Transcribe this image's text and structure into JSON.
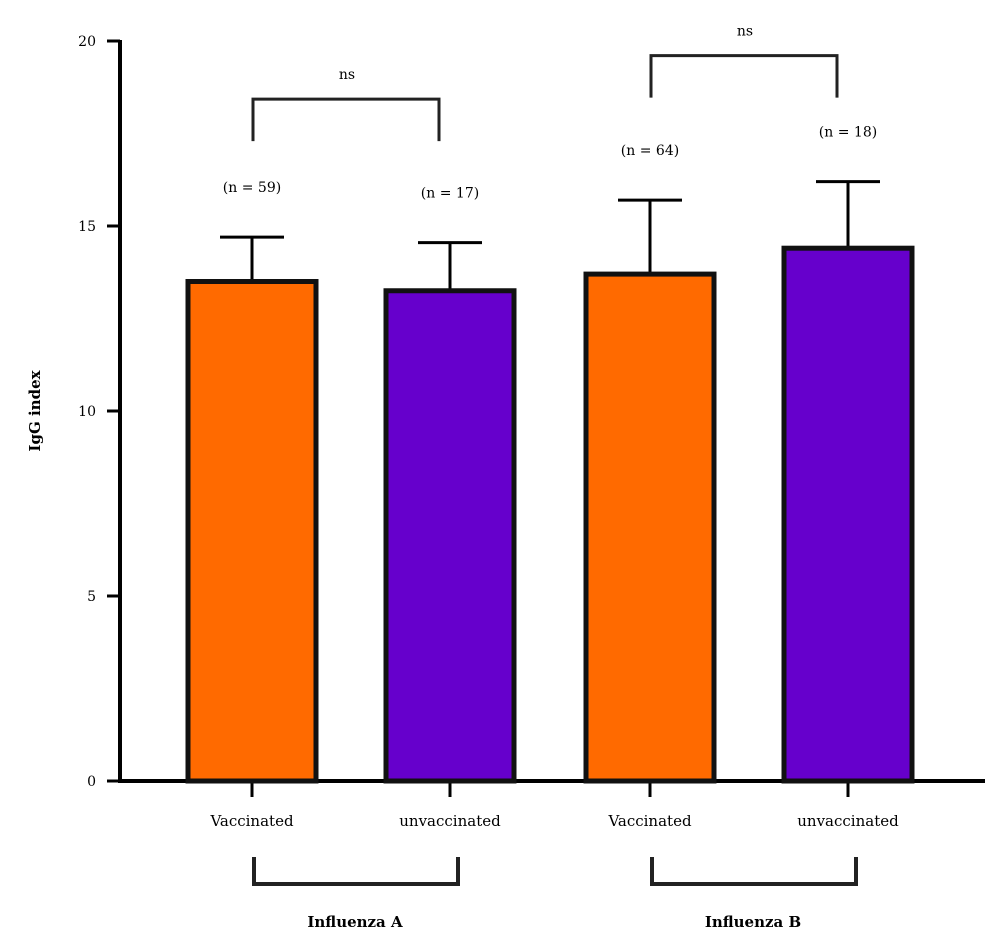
{
  "chart_data": {
    "type": "bar",
    "ylabel": "IgG index",
    "ylim": [
      0,
      20
    ],
    "yticks": [
      0,
      5,
      10,
      15,
      20
    ],
    "categories": [
      "Vaccinated",
      "unvaccinated",
      "Vaccinated",
      "unvaccinated"
    ],
    "groups": [
      {
        "label": "Influenza A",
        "bars": [
          0,
          1
        ],
        "significance": "ns"
      },
      {
        "label": "Influenza B",
        "bars": [
          2,
          3
        ],
        "significance": "ns"
      }
    ],
    "values": [
      13.5,
      13.25,
      13.7,
      14.4
    ],
    "error_upper": [
      14.7,
      14.55,
      15.7,
      16.2
    ],
    "n_labels": [
      "(n = 59)",
      "(n = 17)",
      "(n = 64)",
      "(n = 18)"
    ],
    "colors": [
      "#ff6a00",
      "#6600cc",
      "#ff6a00",
      "#6600cc"
    ],
    "grid": false
  }
}
